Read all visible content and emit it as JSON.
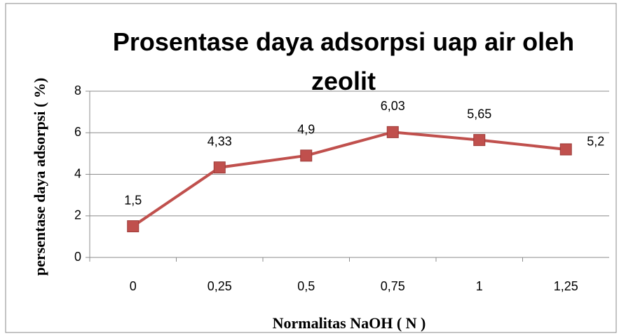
{
  "chart_data": {
    "type": "line",
    "title": "Prosentase daya adsorpsi uap air oleh zeolit",
    "x_label": "Normalitas NaOH ( N )",
    "y_label": "persentase daya adsorpsi ( %)",
    "categories": [
      "0",
      "0,25",
      "0,5",
      "0,75",
      "1",
      "1,25"
    ],
    "series": [
      {
        "name": "persentase",
        "color": "#c0504d",
        "values": [
          1.5,
          4.33,
          4.9,
          6.03,
          5.65,
          5.2
        ],
        "value_labels": [
          "1,5",
          "4,33",
          "4,9",
          "6,03",
          "5,65",
          "5,2"
        ]
      }
    ],
    "ylim": [
      0,
      8
    ],
    "yticks": [
      0,
      2,
      4,
      6,
      8
    ],
    "grid": true
  }
}
